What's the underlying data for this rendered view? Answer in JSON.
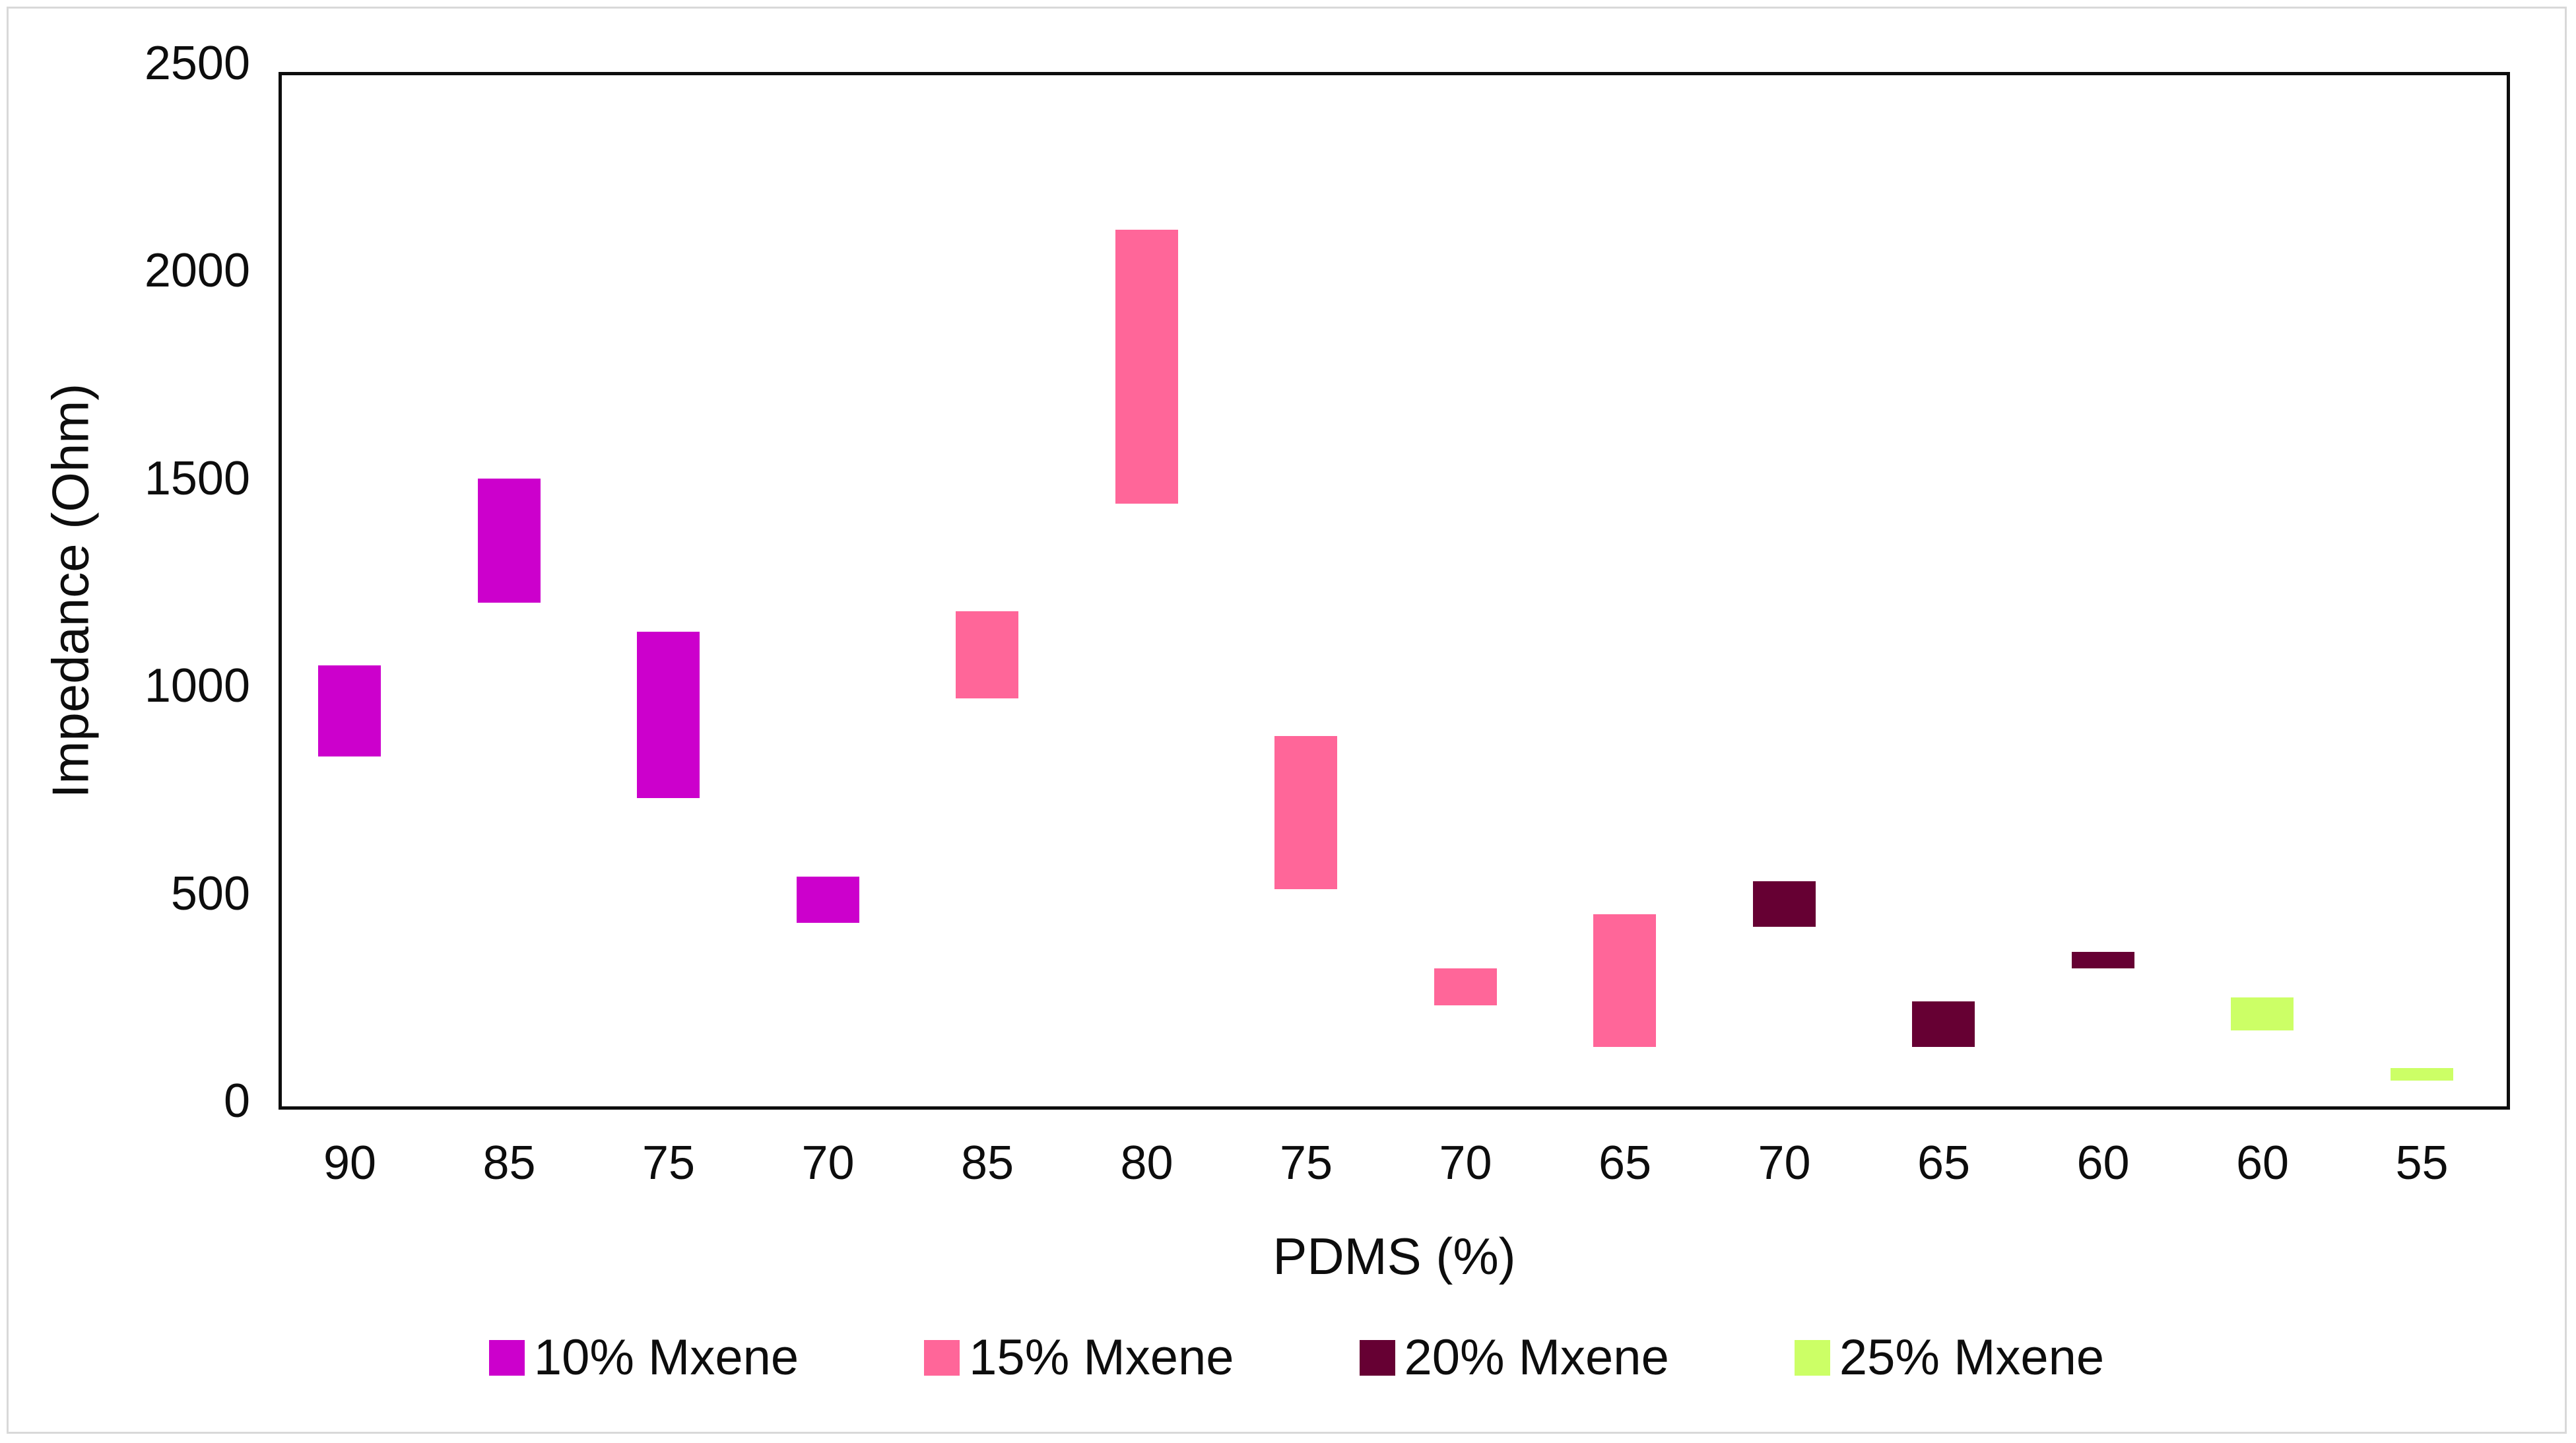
{
  "chart_data": {
    "type": "bar",
    "subtype": "floating-range-columns",
    "title": "",
    "xlabel": "PDMS (%)",
    "ylabel": "Impedance (Ohm)",
    "ylim": [
      0,
      2500
    ],
    "yticks": [
      0,
      500,
      1000,
      1500,
      2000,
      2500
    ],
    "grid": "off",
    "legend_position": "bottom",
    "categories": [
      "90",
      "85",
      "75",
      "70",
      "85",
      "80",
      "75",
      "70",
      "65",
      "70",
      "65",
      "60",
      "60",
      "55"
    ],
    "series": [
      {
        "name": "10% Mxene",
        "color": "#cc00cc"
      },
      {
        "name": "15% Mxene",
        "color": "#ff6699"
      },
      {
        "name": "20% Mxene",
        "color": "#660033"
      },
      {
        "name": "25% Mxene",
        "color": "#ccff66"
      }
    ],
    "bars": [
      {
        "category": "90",
        "series": "10% Mxene",
        "low": 830,
        "high": 1050
      },
      {
        "category": "85",
        "series": "10% Mxene",
        "low": 1200,
        "high": 1500
      },
      {
        "category": "75",
        "series": "10% Mxene",
        "low": 730,
        "high": 1130
      },
      {
        "category": "70",
        "series": "10% Mxene",
        "low": 430,
        "high": 540
      },
      {
        "category": "85",
        "series": "15% Mxene",
        "low": 970,
        "high": 1180
      },
      {
        "category": "80",
        "series": "15% Mxene",
        "low": 1440,
        "high": 2100
      },
      {
        "category": "75",
        "series": "15% Mxene",
        "low": 510,
        "high": 880
      },
      {
        "category": "70",
        "series": "15% Mxene",
        "low": 230,
        "high": 320
      },
      {
        "category": "65",
        "series": "15% Mxene",
        "low": 130,
        "high": 450
      },
      {
        "category": "70",
        "series": "20% Mxene",
        "low": 420,
        "high": 530
      },
      {
        "category": "65",
        "series": "20% Mxene",
        "low": 130,
        "high": 240
      },
      {
        "category": "60",
        "series": "20% Mxene",
        "low": 320,
        "high": 360
      },
      {
        "category": "60",
        "series": "25% Mxene",
        "low": 170,
        "high": 250
      },
      {
        "category": "55",
        "series": "25% Mxene",
        "low": 50,
        "high": 80
      }
    ],
    "axis_color": "#0d0d0d",
    "frame_border_color": "#d9d9d9",
    "background_color": "#ffffff"
  }
}
